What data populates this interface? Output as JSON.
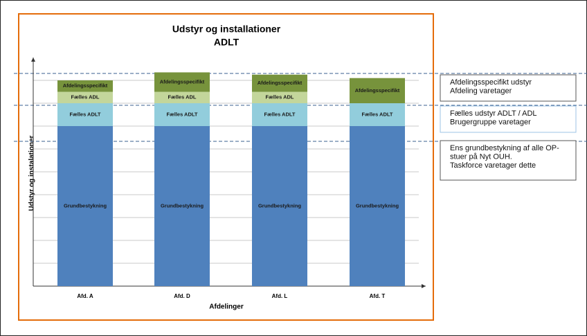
{
  "chart_data": {
    "type": "stacked_bar",
    "title": [
      "Udstyr og installationer",
      "ADLT"
    ],
    "ylabel": "Udstyr og instalationer",
    "xlabel": "Afdelinger",
    "categories": [
      "Afd. A",
      "Afd. D",
      "Afd. L",
      "Afd. T"
    ],
    "series": [
      {
        "name": "Grundbestykning",
        "color": "#4f81bd",
        "values": [
          7,
          7,
          7,
          7
        ]
      },
      {
        "name": "Fælles ADLT",
        "color": "#92cddc",
        "values": [
          1,
          1,
          1,
          1
        ]
      },
      {
        "name": "Fælles ADL",
        "color": "#c3d69b",
        "values": [
          0.5,
          0.5,
          0.5,
          0
        ]
      },
      {
        "name": "Afdelingsspecifikt",
        "color": "#77933c",
        "values": [
          0.5,
          0.85,
          0.75,
          1.1
        ]
      }
    ],
    "ylim": [
      0,
      10
    ],
    "yticks": [
      1,
      2,
      3,
      4,
      5,
      6,
      7,
      8,
      9
    ],
    "grid": true,
    "annotations": [
      [
        "Afdelingsspecifikt udstyr",
        "Afdeling varetager"
      ],
      [
        "Fælles udstyr ADLT / ADL",
        "Brugergruppe varetager"
      ],
      [
        "Ens grundbestykning af alle OP-",
        "stuer på Nyt OUH.",
        "Taskforce varetager dette"
      ]
    ]
  }
}
